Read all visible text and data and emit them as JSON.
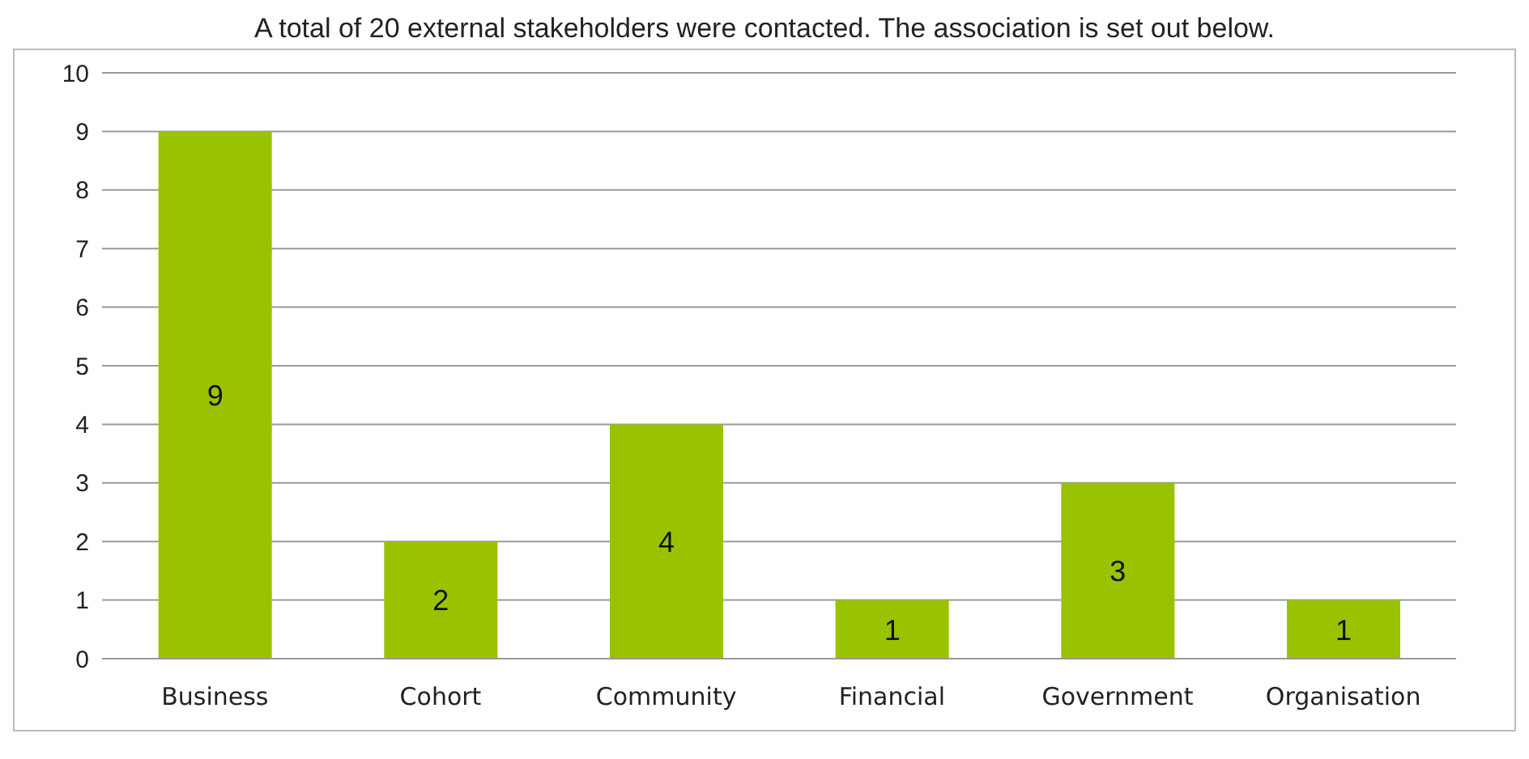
{
  "chart_data": {
    "type": "bar",
    "title": "A total of 20 external stakeholders were contacted. The association is set out below.",
    "categories": [
      "Business",
      "Cohort",
      "Community",
      "Financial",
      "Government",
      "Organisation"
    ],
    "values": [
      9,
      2,
      4,
      1,
      3,
      1
    ],
    "color": "#99c300",
    "ylim": [
      0,
      10
    ],
    "yticks": [
      0,
      1,
      2,
      3,
      4,
      5,
      6,
      7,
      8,
      9,
      10
    ],
    "grid": "y",
    "data_labels": true
  }
}
